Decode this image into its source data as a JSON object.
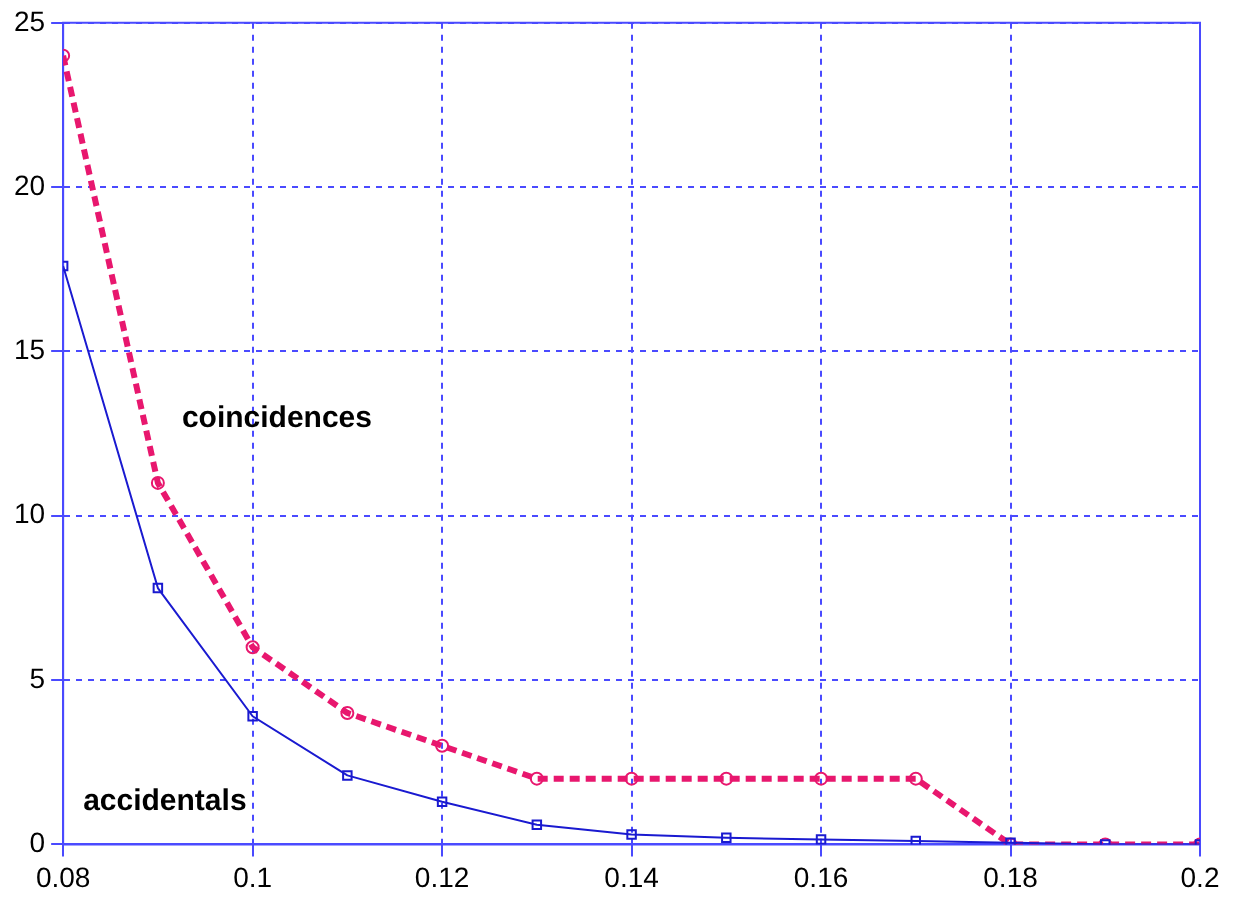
{
  "chart_data": {
    "type": "line",
    "x": [
      0.08,
      0.09,
      0.1,
      0.11,
      0.12,
      0.13,
      0.14,
      0.15,
      0.16,
      0.17,
      0.18,
      0.19,
      0.2
    ],
    "series": [
      {
        "name": "coincidences",
        "color": "#e8176e",
        "marker": "circle",
        "line_style": "dashed",
        "values": [
          24,
          11,
          6,
          4,
          3,
          2,
          2,
          2,
          2,
          2,
          0,
          0,
          0
        ]
      },
      {
        "name": "accidentals",
        "color": "#1a1ad0",
        "marker": "square",
        "line_style": "solid",
        "values": [
          17.6,
          7.8,
          3.9,
          2.1,
          1.3,
          0.6,
          0.3,
          0.2,
          0.15,
          0.1,
          0.05,
          0,
          0
        ]
      }
    ],
    "xlim": [
      0.08,
      0.2
    ],
    "xticks": [
      0.08,
      0.1,
      0.12,
      0.14,
      0.16,
      0.18,
      0.2
    ],
    "ylim": [
      0,
      25
    ],
    "yticks": [
      0,
      5,
      10,
      15,
      20,
      25
    ],
    "grid": true,
    "legend": false
  }
}
